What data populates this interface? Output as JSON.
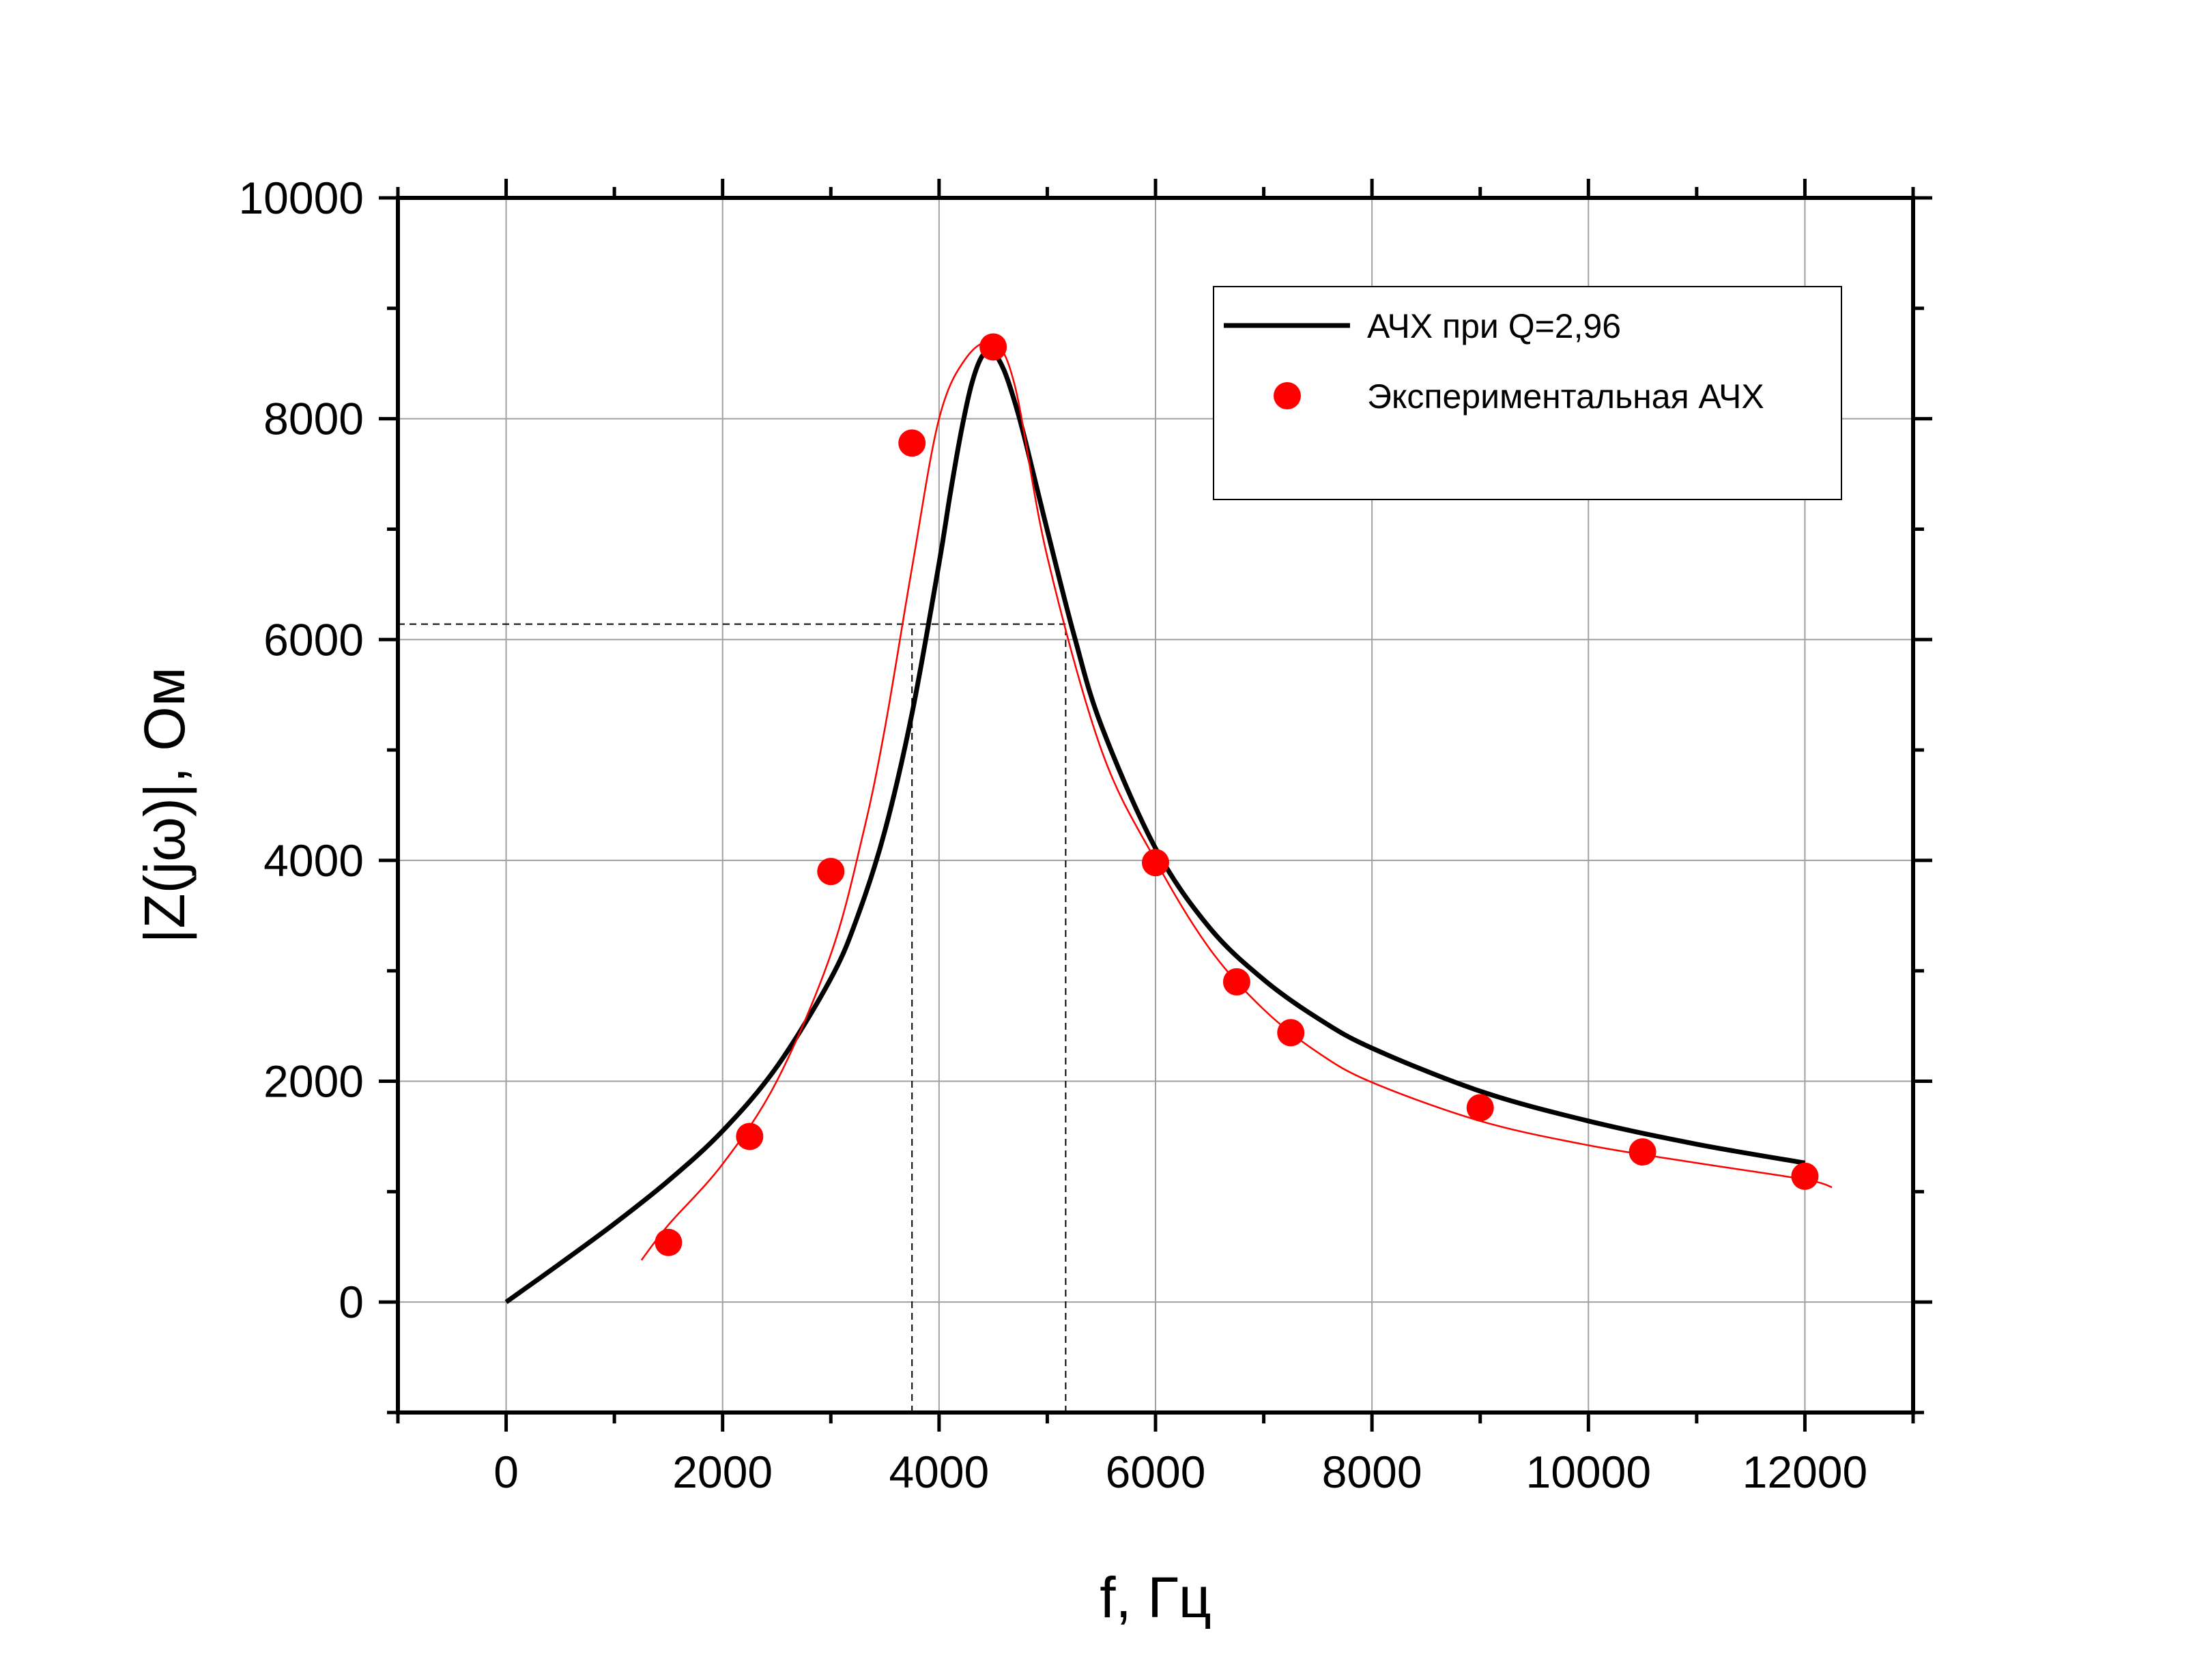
{
  "chart_data": {
    "type": "line",
    "xlabel": "f, Гц",
    "ylabel": "|Z(jω)|, Ом",
    "xlim": [
      -1000,
      13000
    ],
    "ylim": [
      -1000,
      10000
    ],
    "x_ticks": [
      0,
      2000,
      4000,
      6000,
      8000,
      10000,
      12000
    ],
    "y_ticks": [
      0,
      2000,
      4000,
      6000,
      8000,
      10000
    ],
    "grid": true,
    "legend_position": "top-right",
    "series": [
      {
        "name": "АЧХ при Q=2,96",
        "kind": "line",
        "color": "#000000",
        "x": [
          0,
          500,
          1000,
          1500,
          2000,
          2500,
          3000,
          3250,
          3500,
          3750,
          4000,
          4100,
          4200,
          4300,
          4400,
          4500,
          4600,
          4700,
          4800,
          5000,
          5250,
          5500,
          6000,
          6500,
          7000,
          7500,
          8000,
          9000,
          10000,
          11000,
          12000
        ],
        "y": [
          0,
          350,
          710,
          1100,
          1550,
          2130,
          2930,
          3500,
          4270,
          5330,
          6690,
          7300,
          7860,
          8310,
          8570,
          8600,
          8440,
          8150,
          7790,
          6990,
          6030,
          5220,
          4110,
          3390,
          2920,
          2570,
          2300,
          1910,
          1640,
          1430,
          1260
        ]
      },
      {
        "name": "Экспериментальная АЧХ",
        "kind": "scatter",
        "color": "#ff0000",
        "x": [
          1500,
          2250,
          3000,
          3750,
          4500,
          6000,
          6750,
          7250,
          9000,
          10500,
          12000
        ],
        "y": [
          540,
          1500,
          3900,
          7780,
          8650,
          3980,
          2900,
          2440,
          1760,
          1360,
          1140
        ]
      },
      {
        "kind": "line",
        "color": "#ff0000",
        "x": [
          1250,
          1500,
          2000,
          2500,
          3000,
          3300,
          3500,
          3750,
          4000,
          4250,
          4500,
          4700,
          5000,
          5500,
          6000,
          6500,
          7000,
          7500,
          8000,
          9000,
          10000,
          11000,
          12000,
          12250
        ],
        "y": [
          380,
          700,
          1250,
          2000,
          3150,
          4250,
          5200,
          6650,
          8000,
          8550,
          8680,
          8300,
          6750,
          5000,
          4000,
          3200,
          2650,
          2260,
          1990,
          1640,
          1420,
          1260,
          1110,
          1040
        ]
      }
    ],
    "annotations": [
      {
        "type": "hline",
        "y": 6140,
        "x_from": -1000,
        "x_to": 5170
      },
      {
        "type": "vline",
        "x": 3750,
        "y_from": -1000,
        "y_to": 6140
      },
      {
        "type": "vline",
        "x": 5170,
        "y_from": -1000,
        "y_to": 6140
      }
    ]
  }
}
